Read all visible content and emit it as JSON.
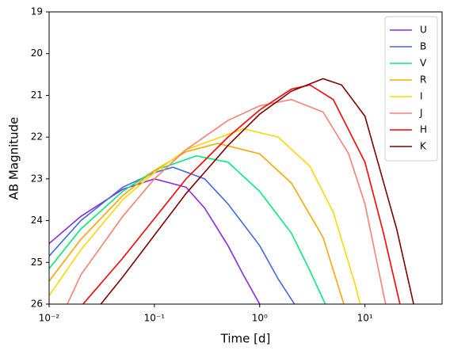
{
  "chart_data": {
    "type": "line",
    "xlabel": "Time [d]",
    "ylabel": "AB Magnitude",
    "xscale": "log",
    "xlim": [
      0.01,
      54
    ],
    "xticks": [
      {
        "value": 0.01,
        "label": "10⁻²"
      },
      {
        "value": 0.1,
        "label": "10⁻¹"
      },
      {
        "value": 1,
        "label": "10⁰"
      },
      {
        "value": 10,
        "label": "10¹"
      }
    ],
    "ylim": [
      26,
      19
    ],
    "yticks": [
      19,
      20,
      21,
      22,
      23,
      24,
      25,
      26
    ],
    "legend": "upper right",
    "series": [
      {
        "name": "U",
        "color": "#8a2be2",
        "x": [
          0.01,
          0.02,
          0.05,
          0.1,
          0.2,
          0.3,
          0.5,
          0.7,
          1.0
        ],
        "values": [
          24.55,
          23.9,
          23.25,
          23.0,
          23.2,
          23.7,
          24.6,
          25.3,
          26.0
        ]
      },
      {
        "name": "B",
        "color": "#4169e1",
        "x": [
          0.01,
          0.02,
          0.05,
          0.1,
          0.15,
          0.3,
          0.5,
          1,
          1.5,
          2.14
        ],
        "values": [
          24.85,
          24.0,
          23.2,
          22.85,
          22.72,
          23.0,
          23.6,
          24.6,
          25.4,
          26.0
        ]
      },
      {
        "name": "V",
        "color": "#00ee76",
        "x": [
          0.01,
          0.02,
          0.05,
          0.1,
          0.25,
          0.5,
          1,
          2,
          3,
          4.2
        ],
        "values": [
          25.15,
          24.2,
          23.3,
          22.8,
          22.45,
          22.6,
          23.3,
          24.3,
          25.2,
          26.0
        ]
      },
      {
        "name": "R",
        "color": "#ffa500",
        "x": [
          0.01,
          0.02,
          0.05,
          0.1,
          0.2,
          0.4,
          1,
          2,
          4,
          6.3
        ],
        "values": [
          25.45,
          24.45,
          23.4,
          22.8,
          22.35,
          22.15,
          22.4,
          23.1,
          24.4,
          26.0
        ]
      },
      {
        "name": "I",
        "color": "#ffd700",
        "x": [
          0.01,
          0.02,
          0.05,
          0.1,
          0.2,
          0.7,
          1.5,
          3,
          5,
          8,
          9.0
        ],
        "values": [
          25.8,
          24.7,
          23.5,
          22.85,
          22.3,
          21.8,
          22.0,
          22.7,
          23.8,
          25.5,
          26.0
        ]
      },
      {
        "name": "J",
        "color": "#fa8072",
        "x": [
          0.0149,
          0.02,
          0.05,
          0.1,
          0.2,
          0.5,
          1,
          2,
          4,
          7,
          10,
          15.7
        ],
        "values": [
          26.0,
          25.3,
          23.9,
          23.0,
          22.3,
          21.6,
          21.25,
          21.1,
          21.4,
          22.4,
          23.6,
          26.0
        ]
      },
      {
        "name": "H",
        "color": "#ff0000",
        "x": [
          0.021,
          0.05,
          0.1,
          0.2,
          0.5,
          1,
          2,
          3,
          5,
          10,
          15,
          21.5
        ],
        "values": [
          26.0,
          24.9,
          23.95,
          23.0,
          22.0,
          21.35,
          20.85,
          20.75,
          21.1,
          22.6,
          24.3,
          26.0
        ]
      },
      {
        "name": "K",
        "color": "#800000",
        "x": [
          0.031,
          0.05,
          0.1,
          0.2,
          0.5,
          1,
          2,
          4,
          6,
          10,
          20,
          29
        ],
        "values": [
          26.0,
          25.35,
          24.35,
          23.35,
          22.2,
          21.45,
          20.9,
          20.6,
          20.75,
          21.5,
          24.2,
          26.0
        ]
      }
    ]
  }
}
